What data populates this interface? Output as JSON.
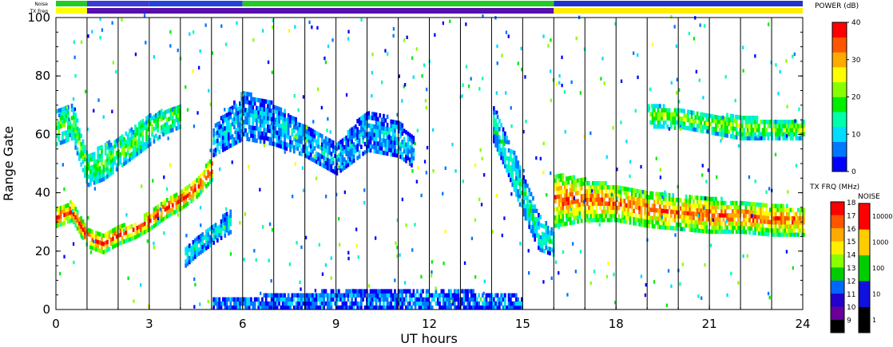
{
  "chart_data": {
    "type": "heatmap",
    "title": "",
    "xlabel": "UT hours",
    "ylabel": "Range Gate",
    "x_ticks": [
      0,
      3,
      6,
      9,
      12,
      15,
      18,
      21,
      24
    ],
    "y_ticks": [
      0,
      20,
      40,
      60,
      80,
      100
    ],
    "xlim": [
      0,
      24
    ],
    "ylim": [
      0,
      100
    ],
    "hour_lines": [
      1,
      2,
      3,
      4,
      5,
      6,
      7,
      8,
      9,
      10,
      11,
      12,
      13,
      14,
      15,
      16,
      17,
      18,
      19,
      20,
      21,
      22,
      23
    ],
    "strip_labels": {
      "noise": "Noise",
      "txfreq": "TX Freq"
    },
    "noise_strip": [
      {
        "start": 0,
        "end": 1,
        "color": "#22cc22"
      },
      {
        "start": 1,
        "end": 3,
        "color": "#3b3bd6"
      },
      {
        "start": 3,
        "end": 6,
        "color": "#2244dd"
      },
      {
        "start": 6,
        "end": 16,
        "color": "#22cc22"
      },
      {
        "start": 16,
        "end": 24,
        "color": "#2233cc"
      }
    ],
    "txfreq_strip": [
      {
        "start": 0,
        "end": 1,
        "color": "#ffff00"
      },
      {
        "start": 1,
        "end": 16,
        "color": "#5511aa"
      },
      {
        "start": 16,
        "end": 24,
        "color": "#ffee00"
      }
    ],
    "power_scale": {
      "title": "POWER (dB)",
      "ticks": [
        0,
        10,
        20,
        30,
        40
      ],
      "range": [
        0,
        40
      ],
      "colors": [
        "#0000ff",
        "#0077ff",
        "#00ddff",
        "#00ffaa",
        "#00ee00",
        "#88ff00",
        "#ffff00",
        "#ffaa00",
        "#ff5500",
        "#ff0000"
      ]
    },
    "txfreq_scale": {
      "title": "TX FRQ (MHz)",
      "ticks": [
        9,
        10,
        11,
        12,
        13,
        14,
        15,
        16,
        17,
        18
      ],
      "colors": [
        "#000000",
        "#660099",
        "#2200cc",
        "#0066ff",
        "#00cc00",
        "#88ff00",
        "#ffee00",
        "#ffaa00",
        "#ff5500",
        "#ff0000"
      ]
    },
    "noise_scale": {
      "title": "NOISE",
      "ticks": [
        "1",
        "10",
        "100",
        "1000",
        "10000"
      ],
      "colors": [
        "#000000",
        "#1111dd",
        "#00cc00",
        "#ffcc00",
        "#ff0000"
      ]
    },
    "bands": [
      {
        "name": "ionospheric-echo-lower",
        "points": [
          [
            0.0,
            28,
            34
          ],
          [
            0.5,
            30,
            36
          ],
          [
            1.0,
            21,
            27
          ],
          [
            1.5,
            19,
            25
          ],
          [
            2.0,
            22,
            28
          ],
          [
            2.5,
            24,
            29
          ],
          [
            3.0,
            27,
            33
          ],
          [
            3.5,
            31,
            37
          ],
          [
            4.0,
            34,
            40
          ],
          [
            4.5,
            38,
            44
          ],
          [
            5.0,
            44,
            52
          ]
        ],
        "power": 33
      },
      {
        "name": "ionospheric-echo-upper",
        "points": [
          [
            0.0,
            56,
            68
          ],
          [
            0.5,
            58,
            70
          ],
          [
            1.0,
            42,
            52
          ],
          [
            1.5,
            44,
            56
          ],
          [
            2.0,
            48,
            58
          ],
          [
            2.5,
            52,
            62
          ],
          [
            3.0,
            56,
            66
          ],
          [
            3.5,
            60,
            68
          ],
          [
            4.0,
            62,
            70
          ]
        ],
        "power": 17
      },
      {
        "name": "diffuse-echo-morning",
        "points": [
          [
            5.0,
            52,
            62
          ],
          [
            6.0,
            58,
            74
          ],
          [
            7.0,
            56,
            70
          ],
          [
            8.0,
            52,
            62
          ],
          [
            9.0,
            46,
            56
          ],
          [
            10.0,
            54,
            68
          ],
          [
            11.0,
            52,
            64
          ],
          [
            11.5,
            48,
            58
          ]
        ],
        "power": 8
      },
      {
        "name": "patch-0500",
        "points": [
          [
            4.1,
            14,
            20
          ],
          [
            4.5,
            18,
            24
          ],
          [
            5.0,
            22,
            28
          ],
          [
            5.6,
            26,
            34
          ]
        ],
        "power": 10
      },
      {
        "name": "evening-echo-descending",
        "points": [
          [
            14.0,
            58,
            70
          ],
          [
            14.5,
            46,
            58
          ],
          [
            15.0,
            32,
            46
          ],
          [
            15.5,
            20,
            32
          ],
          [
            16.0,
            18,
            26
          ]
        ],
        "power": 12
      },
      {
        "name": "evening-echo-main",
        "points": [
          [
            16.0,
            28,
            46
          ],
          [
            17.0,
            30,
            44
          ],
          [
            18.0,
            30,
            42
          ],
          [
            19.0,
            28,
            40
          ],
          [
            20.0,
            27,
            38
          ],
          [
            21.0,
            26,
            38
          ],
          [
            22.0,
            26,
            36
          ],
          [
            23.0,
            25,
            36
          ],
          [
            24.0,
            25,
            34
          ]
        ],
        "power": 30
      },
      {
        "name": "evening-echo-top",
        "points": [
          [
            19.0,
            62,
            70
          ],
          [
            20.0,
            62,
            68
          ],
          [
            21.0,
            60,
            66
          ],
          [
            22.0,
            58,
            66
          ],
          [
            23.0,
            58,
            64
          ],
          [
            24.0,
            58,
            64
          ]
        ],
        "power": 20
      },
      {
        "name": "ground-scatter-base",
        "points": [
          [
            5.0,
            0,
            3
          ],
          [
            9.0,
            0,
            6
          ],
          [
            13.0,
            0,
            6
          ],
          [
            15.0,
            0,
            4
          ]
        ],
        "power": 6
      }
    ]
  }
}
